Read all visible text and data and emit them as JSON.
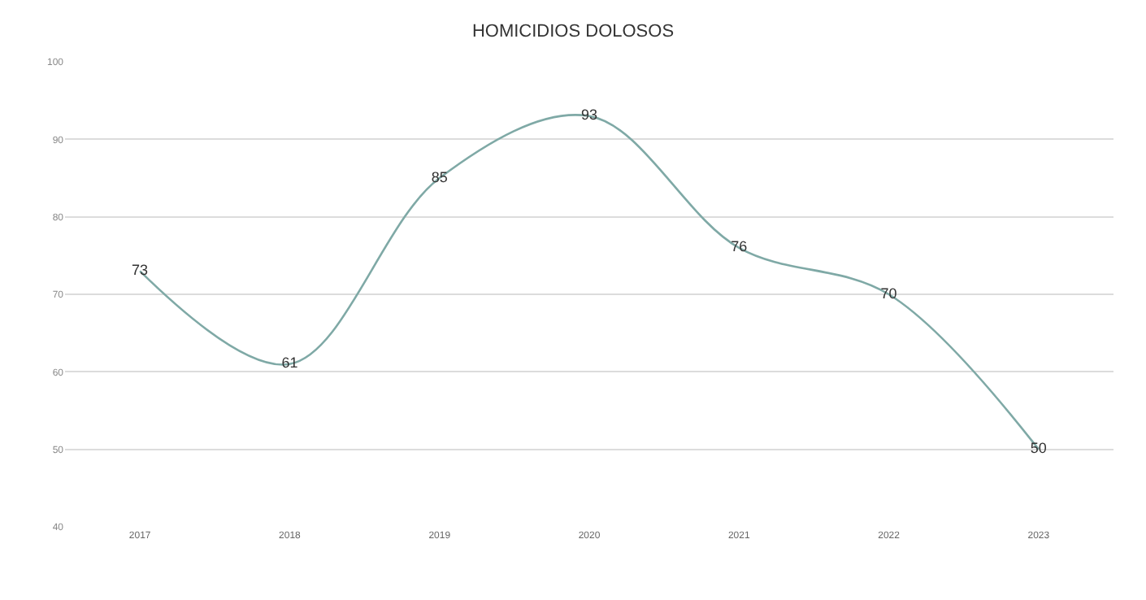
{
  "chart_data": {
    "type": "line",
    "title": "HOMICIDIOS DOLOSOS",
    "categories": [
      "2017",
      "2018",
      "2019",
      "2020",
      "2021",
      "2022",
      "2023"
    ],
    "series": [
      {
        "color": "#7fa9a6",
        "values": [
          73,
          61,
          85,
          93,
          76,
          70,
          50
        ]
      }
    ],
    "ylim": [
      40,
      100
    ],
    "yticks": [
      40,
      50,
      60,
      70,
      80,
      90,
      100
    ],
    "grid": "y",
    "data_labels": true,
    "marker": "none",
    "line_style": "solid"
  }
}
